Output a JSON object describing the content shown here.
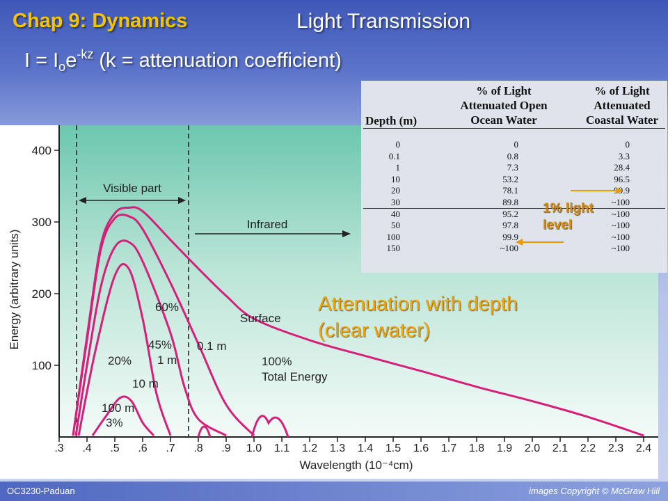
{
  "title": {
    "chapter": "Chap 9: Dynamics",
    "topic": "Light Transmission"
  },
  "formula": {
    "lhs": "I = I",
    "sub": "o",
    "base": "e",
    "exp": "-kz",
    "note": "(k = attenuation coefficient)"
  },
  "chart": {
    "y_label": "Energy (arbitrary units)",
    "x_label": "Wavelength (10⁻⁴cm)",
    "y_ticks": [
      "100",
      "200",
      "300",
      "400"
    ],
    "x_ticks": [
      ".3",
      ".4",
      ".5",
      ".6",
      ".7",
      ".8",
      ".9",
      "1.0",
      "1.1",
      "1.2",
      "1.3",
      "1.4",
      "1.5",
      "1.6",
      "1.7",
      "1.8",
      "1.9",
      "2.0",
      "2.1",
      "2.2",
      "2.3",
      "2.4"
    ],
    "visible_label": "Visible part",
    "infrared_label": "Infrared",
    "curve_labels": {
      "surface": "Surface",
      "m01": "0.1 m",
      "p60": "60%",
      "p45": "45%",
      "m1": "1 m",
      "p20": "20%",
      "m10": "10 m",
      "m100": "100 m",
      "p3": "3%",
      "p100": "100%",
      "total": "Total Energy"
    },
    "colors": {
      "curve": "#d4207a",
      "panel_top": "#6cc7ae",
      "panel_bottom": "#f4fbf8"
    }
  },
  "chart_data": {
    "type": "line",
    "xlabel": "Wavelength (10⁻⁴cm)",
    "ylabel": "Energy (arbitrary units)",
    "xlim": [
      0.3,
      2.4
    ],
    "ylim": [
      0,
      400
    ],
    "series": [
      {
        "name": "Surface",
        "x": [
          0.35,
          0.4,
          0.45,
          0.5,
          0.55,
          0.6,
          0.7,
          0.8,
          0.9,
          1.0,
          1.2,
          1.4,
          1.6,
          1.8,
          2.0,
          2.2,
          2.4
        ],
        "y": [
          2,
          140,
          268,
          312,
          320,
          315,
          275,
          235,
          197,
          165,
          135,
          113,
          92,
          70,
          50,
          28,
          2
        ]
      },
      {
        "name": "0.1 m",
        "x": [
          0.35,
          0.4,
          0.45,
          0.5,
          0.55,
          0.6,
          0.7,
          0.8,
          0.9,
          1.0
        ],
        "y": [
          2,
          135,
          262,
          305,
          308,
          290,
          215,
          130,
          45,
          2
        ]
      },
      {
        "name": "1 m",
        "x": [
          0.36,
          0.4,
          0.45,
          0.5,
          0.55,
          0.6,
          0.7,
          0.75,
          0.8,
          0.9
        ],
        "y": [
          2,
          100,
          210,
          265,
          272,
          245,
          145,
          70,
          25,
          2
        ]
      },
      {
        "name": "10 m",
        "x": [
          0.37,
          0.43,
          0.5,
          0.55,
          0.6,
          0.65,
          0.7
        ],
        "y": [
          2,
          120,
          225,
          235,
          165,
          60,
          2
        ]
      },
      {
        "name": "100 m",
        "x": [
          0.42,
          0.47,
          0.52,
          0.56,
          0.6,
          0.64
        ],
        "y": [
          2,
          30,
          55,
          50,
          20,
          2
        ]
      }
    ],
    "annotations": [
      "Visible part",
      "Infrared",
      "60%",
      "45%",
      "20%",
      "3%",
      "100% Total Energy"
    ]
  },
  "table": {
    "headers": [
      "Depth (m)",
      "% of Light Attenuated Open Ocean Water",
      "% of Light Attenuated Coastal Water"
    ],
    "header_lines": {
      "depth": "Depth (m)",
      "open": [
        "% of Light",
        "Attenuated Open",
        "Ocean Water"
      ],
      "coastal": [
        "% of Light",
        "Attenuated",
        "Coastal Water"
      ]
    },
    "rows": [
      [
        "0",
        "0",
        "0"
      ],
      [
        "0.1",
        "0.8",
        "3.3"
      ],
      [
        "1",
        "7.3",
        "28.4"
      ],
      [
        "10",
        "53.2",
        "96.5"
      ],
      [
        "20",
        "78.1",
        "99.9"
      ],
      [
        "30",
        "89.8",
        "~100"
      ],
      [
        "40",
        "95.2",
        "~100"
      ],
      [
        "50",
        "97.8",
        "~100"
      ],
      [
        "100",
        "99.9",
        "~100"
      ],
      [
        "150",
        "~100",
        "~100"
      ]
    ],
    "callout_line1": "1% light",
    "callout_line2": "level"
  },
  "attenuation_note": {
    "line1": "Attenuation with depth",
    "line2": "(clear water)"
  },
  "footer": {
    "left": "OC3230-Paduan",
    "right": "images Copyright © McGraw Hill"
  }
}
